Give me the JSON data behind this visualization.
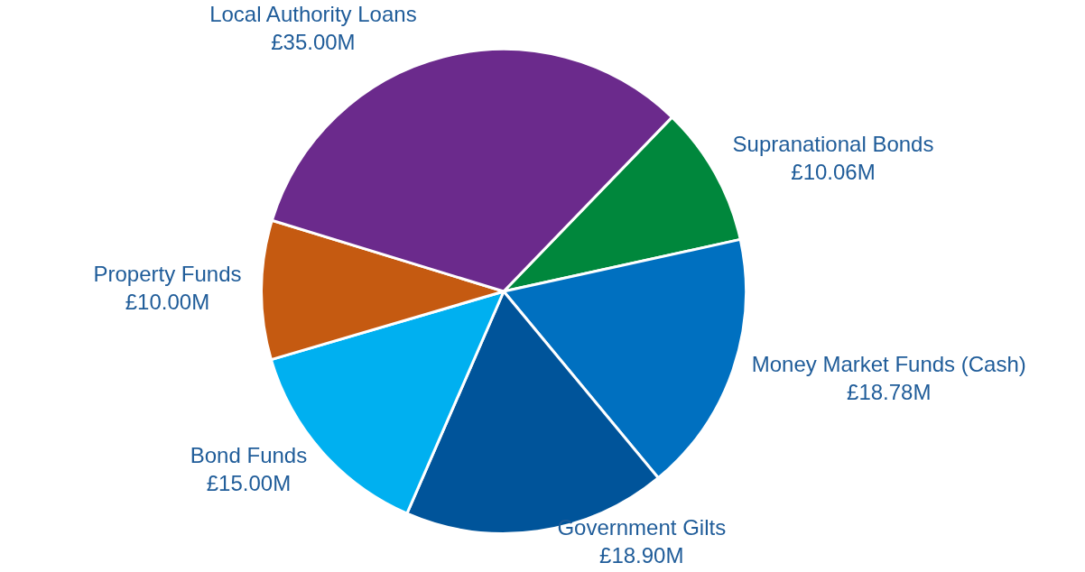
{
  "chart_data": {
    "type": "pie",
    "categories": [
      "Supranational Bonds",
      "Money Market Funds (Cash)",
      "Government Gilts",
      "Bond Funds",
      "Property Funds",
      "Local Authority Loans"
    ],
    "values": [
      10.06,
      18.78,
      18.9,
      15.0,
      10.0,
      35.0
    ],
    "colors": [
      "#00873c",
      "#0070c0",
      "#00549a",
      "#00b0f0",
      "#c55a11",
      "#6b2a8c"
    ],
    "value_labels": [
      "£10.06M",
      "£18.78M",
      "£18.90M",
      "£15.00M",
      "£10.00M",
      "£35.00M"
    ],
    "legend": false
  }
}
